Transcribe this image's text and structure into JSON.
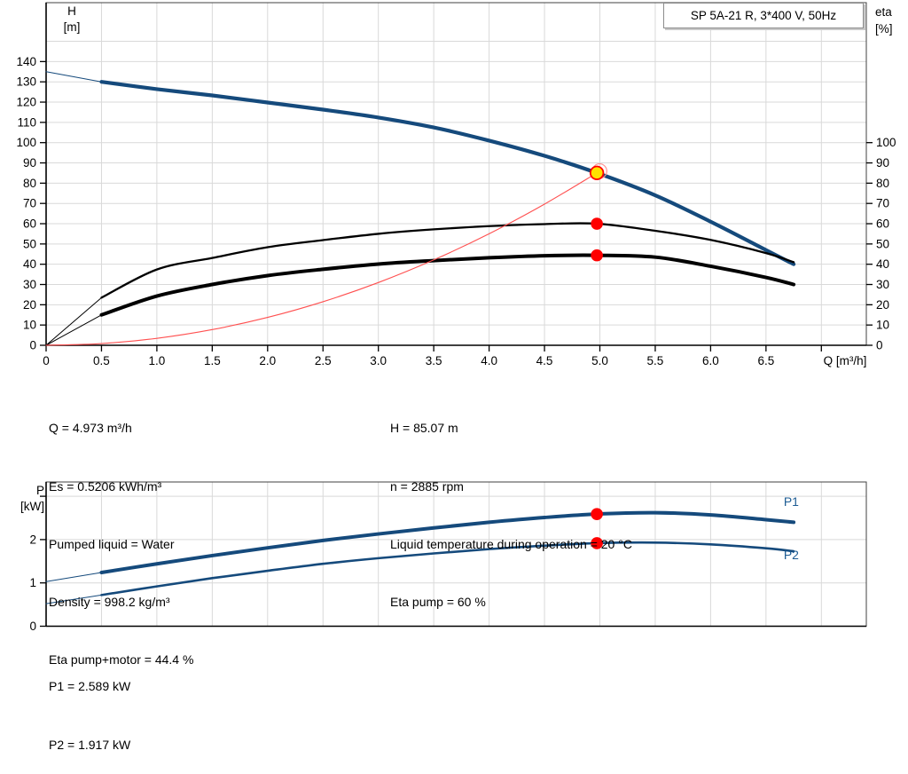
{
  "title_box": {
    "text": "SP 5A-21 R, 3*400 V, 50Hz"
  },
  "colors": {
    "curve_blue": "#154a7c",
    "curve_black": "#000000",
    "system_red": "#ff5050",
    "marker_red": "#ff0000",
    "marker_yellow": "#ffe000",
    "grid": "#d9d9d9",
    "frame": "#404040",
    "label_blue": "#1d5c94"
  },
  "chart_data": [
    {
      "id": "qh",
      "type": "line",
      "title": "SP 5A-21 R, 3*400 V, 50Hz",
      "x_axis": {
        "label": "Q [m³/h]",
        "min": 0,
        "max": 7.41,
        "tick_step": 0.5,
        "labeled_tick_max": 6.5,
        "grid_tick_max": 7.0
      },
      "y_left_axis": {
        "label_line1": "H",
        "label_line2": "[m]",
        "min": 0,
        "max": 169,
        "tick_step": 10,
        "tick_max": 140,
        "grid_max": 150
      },
      "y_right_axis": {
        "label_line1": "eta",
        "label_line2": "[%]",
        "tick_step": 10,
        "tick_max": 100
      },
      "series": [
        {
          "name": "pump-curve-QH",
          "color": "#154a7c",
          "width": 4.2,
          "lead_thin_until_x": 0.5,
          "points": [
            [
              0,
              135
            ],
            [
              0.5,
              130
            ],
            [
              1,
              126.4
            ],
            [
              1.5,
              123.3
            ],
            [
              2,
              119.8
            ],
            [
              2.5,
              116.3
            ],
            [
              3,
              112.4
            ],
            [
              3.5,
              107.5
            ],
            [
              4,
              101
            ],
            [
              4.5,
              93.5
            ],
            [
              4.973,
              85.07
            ],
            [
              5.5,
              74
            ],
            [
              6,
              61
            ],
            [
              6.5,
              47
            ],
            [
              6.75,
              40
            ]
          ]
        },
        {
          "name": "eta-pump-curve",
          "color": "#000000",
          "width": 2.3,
          "lead_thin_until_x": 0.5,
          "points": [
            [
              0,
              0
            ],
            [
              0.5,
              23.5
            ],
            [
              1,
              37.4
            ],
            [
              1.5,
              43.1
            ],
            [
              2,
              48.4
            ],
            [
              2.5,
              51.9
            ],
            [
              3,
              55
            ],
            [
              3.5,
              57.2
            ],
            [
              4,
              58.8
            ],
            [
              4.5,
              59.8
            ],
            [
              4.973,
              60
            ],
            [
              5.5,
              56.5
            ],
            [
              6,
              52
            ],
            [
              6.5,
              45.5
            ],
            [
              6.75,
              41
            ]
          ]
        },
        {
          "name": "eta-pump-motor-curve",
          "color": "#000000",
          "width": 4.0,
          "lead_thin_until_x": 0.5,
          "points": [
            [
              0,
              0
            ],
            [
              0.5,
              15
            ],
            [
              1,
              24.3
            ],
            [
              1.5,
              30
            ],
            [
              2,
              34.4
            ],
            [
              2.5,
              37.5
            ],
            [
              3,
              40.1
            ],
            [
              3.5,
              41.8
            ],
            [
              4,
              43.2
            ],
            [
              4.5,
              44.2
            ],
            [
              4.973,
              44.4
            ],
            [
              5.5,
              43.5
            ],
            [
              6,
              39
            ],
            [
              6.5,
              33.5
            ],
            [
              6.75,
              30
            ]
          ]
        },
        {
          "name": "system-curve",
          "color": "#ff5050",
          "width": 1.1,
          "points": [
            [
              0,
              0
            ],
            [
              0.5,
              0.86
            ],
            [
              1,
              3.44
            ],
            [
              1.5,
              7.74
            ],
            [
              2,
              13.76
            ],
            [
              2.5,
              21.5
            ],
            [
              3,
              30.96
            ],
            [
              3.5,
              42.14
            ],
            [
              4,
              55.03
            ],
            [
              4.5,
              69.65
            ],
            [
              4.973,
              85.07
            ]
          ]
        }
      ],
      "markers": [
        {
          "name": "duty-point",
          "x": 4.973,
          "y": 85.07,
          "style": "yellow-ring"
        },
        {
          "name": "eta-pump-point",
          "x": 4.973,
          "y": 60,
          "style": "red-dot"
        },
        {
          "name": "eta-pump-motor-point",
          "x": 4.973,
          "y": 44.4,
          "style": "red-dot"
        }
      ]
    },
    {
      "id": "power",
      "type": "line",
      "x_axis": {
        "min": 0,
        "max": 7.41,
        "tick_step": 0.5,
        "grid_tick_max": 7.0
      },
      "y_left_axis": {
        "label_line1": "P",
        "label_line2": "[kW]",
        "min": 0,
        "max": 3.35,
        "tick_step": 1,
        "tick_max": 3,
        "labeled_tick_max": 2,
        "grid_max": 3
      },
      "series": [
        {
          "name": "P1-curve",
          "label": "P1",
          "color": "#154a7c",
          "width": 4.0,
          "lead_thin_until_x": 0.5,
          "points": [
            [
              0,
              1.03
            ],
            [
              0.5,
              1.24
            ],
            [
              1,
              1.44
            ],
            [
              1.5,
              1.63
            ],
            [
              2,
              1.81
            ],
            [
              2.5,
              1.98
            ],
            [
              3,
              2.13
            ],
            [
              3.5,
              2.27
            ],
            [
              4,
              2.4
            ],
            [
              4.5,
              2.51
            ],
            [
              4.973,
              2.589
            ],
            [
              5.5,
              2.62
            ],
            [
              6,
              2.57
            ],
            [
              6.5,
              2.46
            ],
            [
              6.75,
              2.4
            ]
          ]
        },
        {
          "name": "P2-curve",
          "label": "P2",
          "color": "#154a7c",
          "width": 2.6,
          "lead_thin_until_x": 0.5,
          "points": [
            [
              0,
              0.52
            ],
            [
              0.5,
              0.72
            ],
            [
              1,
              0.92
            ],
            [
              1.5,
              1.11
            ],
            [
              2,
              1.28
            ],
            [
              2.5,
              1.44
            ],
            [
              3,
              1.57
            ],
            [
              3.5,
              1.68
            ],
            [
              4,
              1.78
            ],
            [
              4.5,
              1.86
            ],
            [
              4.973,
              1.917
            ],
            [
              5.5,
              1.93
            ],
            [
              6,
              1.89
            ],
            [
              6.5,
              1.8
            ],
            [
              6.75,
              1.73
            ]
          ]
        }
      ],
      "markers": [
        {
          "name": "P1-point",
          "x": 4.973,
          "y": 2.589,
          "style": "red-dot"
        },
        {
          "name": "P2-point",
          "x": 4.973,
          "y": 1.917,
          "style": "red-dot"
        }
      ],
      "series_labels": [
        {
          "text": "P1",
          "x": 6.66,
          "y": 2.78
        },
        {
          "text": "P2",
          "x": 6.66,
          "y": 1.55
        }
      ]
    }
  ],
  "info": {
    "left": [
      "Q = 4.973 m³/h",
      "Es = 0.5206 kWh/m³",
      "Pumped liquid = Water",
      "Density = 998.2 kg/m³",
      "Eta pump+motor = 44.4 %"
    ],
    "right": [
      "H = 85.07 m",
      "n = 2885 rpm",
      "Liquid temperature during operation = 20 °C",
      "Eta pump = 60 %"
    ],
    "power": [
      "P1 = 2.589 kW",
      "P2 = 1.917 kW"
    ]
  }
}
